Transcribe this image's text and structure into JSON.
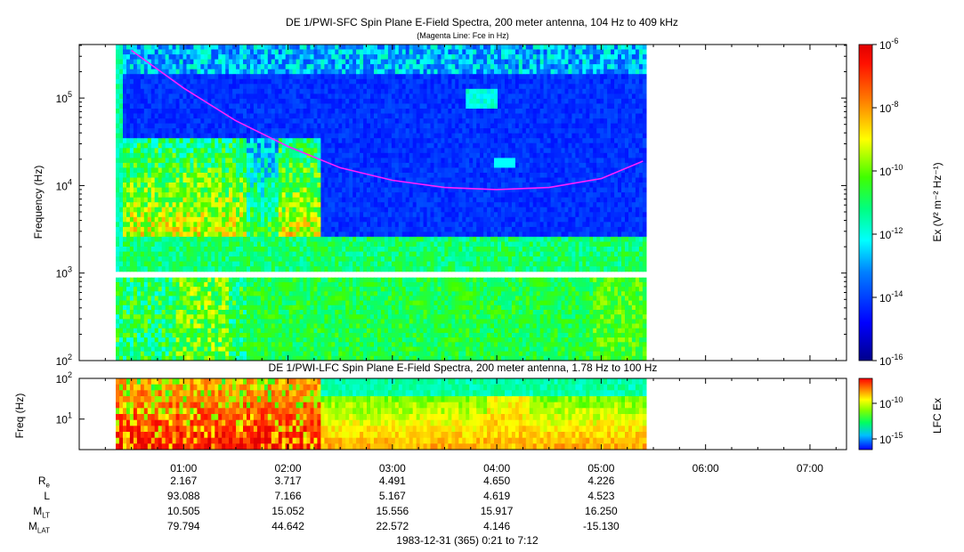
{
  "chart_data": [
    {
      "type": "heatmap",
      "title": "DE 1/PWI-SFC  Spin Plane E-Field Spectra, 200 meter antenna, 104 Hz to 409 kHz",
      "subtitle": "(Magenta Line: Fce in Hz)",
      "ylabel": "Frequency (Hz)",
      "yscale": "log",
      "ylim": [
        100,
        409000
      ],
      "yticks": [
        {
          "mant": "10",
          "exp": "2",
          "value": 100
        },
        {
          "mant": "10",
          "exp": "3",
          "value": 1000
        },
        {
          "mant": "10",
          "exp": "4",
          "value": 10000
        },
        {
          "mant": "10",
          "exp": "5",
          "value": 100000
        }
      ],
      "data_extent_hours": [
        0.35,
        5.43
      ],
      "colorbar": {
        "label": "Ex (V² m⁻² Hz⁻¹)",
        "scale": "log",
        "range": [
          1e-16,
          1e-06
        ],
        "ticks": [
          {
            "mant": "10",
            "exp": "-6"
          },
          {
            "mant": "10",
            "exp": "-8"
          },
          {
            "mant": "10",
            "exp": "-10"
          },
          {
            "mant": "10",
            "exp": "-12"
          },
          {
            "mant": "10",
            "exp": "-14"
          },
          {
            "mant": "10",
            "exp": "-16"
          }
        ]
      },
      "fce_line": {
        "color": "#ff20ff",
        "x_hours": [
          0.5,
          1.0,
          1.5,
          2.0,
          2.5,
          3.0,
          3.5,
          4.0,
          4.5,
          5.0,
          5.4
        ],
        "y_hz": [
          350000,
          130000,
          55000,
          28000,
          16000,
          11500,
          9500,
          9000,
          9500,
          12000,
          19000
        ]
      }
    },
    {
      "type": "heatmap",
      "title": "DE 1/PWI-LFC  Spin Plane E-Field Spectra, 200 meter antenna, 1.78 Hz to 100 Hz",
      "ylabel": "Freq (Hz)",
      "yscale": "log",
      "ylim": [
        1.78,
        100
      ],
      "yticks": [
        {
          "mant": "10",
          "exp": "1",
          "value": 10
        },
        {
          "mant": "10",
          "exp": "2",
          "value": 100
        }
      ],
      "data_extent_hours": [
        0.35,
        5.43
      ],
      "colorbar": {
        "label": "LFC Ex",
        "ticks": [
          {
            "mant": "10",
            "exp": "-10"
          },
          {
            "mant": "10",
            "exp": "-15"
          }
        ]
      }
    }
  ],
  "time_axis": {
    "xlim_hours": [
      0.0,
      7.35
    ],
    "ticks": [
      {
        "label": "01:00",
        "hour": 1
      },
      {
        "label": "02:00",
        "hour": 2
      },
      {
        "label": "03:00",
        "hour": 3
      },
      {
        "label": "04:00",
        "hour": 4
      },
      {
        "label": "05:00",
        "hour": 5
      },
      {
        "label": "06:00",
        "hour": 6
      },
      {
        "label": "07:00",
        "hour": 7
      }
    ]
  },
  "ephemeris": {
    "rows": [
      {
        "label": "R",
        "sub": "e",
        "values": [
          "2.167",
          "3.717",
          "4.491",
          "4.650",
          "4.226"
        ]
      },
      {
        "label": "L",
        "sub": "",
        "values": [
          "93.088",
          "7.166",
          "5.167",
          "4.619",
          "4.523"
        ]
      },
      {
        "label": "M",
        "sub": "LT",
        "values": [
          "10.505",
          "15.052",
          "15.556",
          "15.917",
          "16.250"
        ]
      },
      {
        "label": "M",
        "sub": "LAT",
        "values": [
          "79.794",
          "44.642",
          "22.572",
          "4.146",
          "-15.130"
        ]
      }
    ]
  },
  "footer": "1983-12-31 (365) 0:21 to 7:12"
}
